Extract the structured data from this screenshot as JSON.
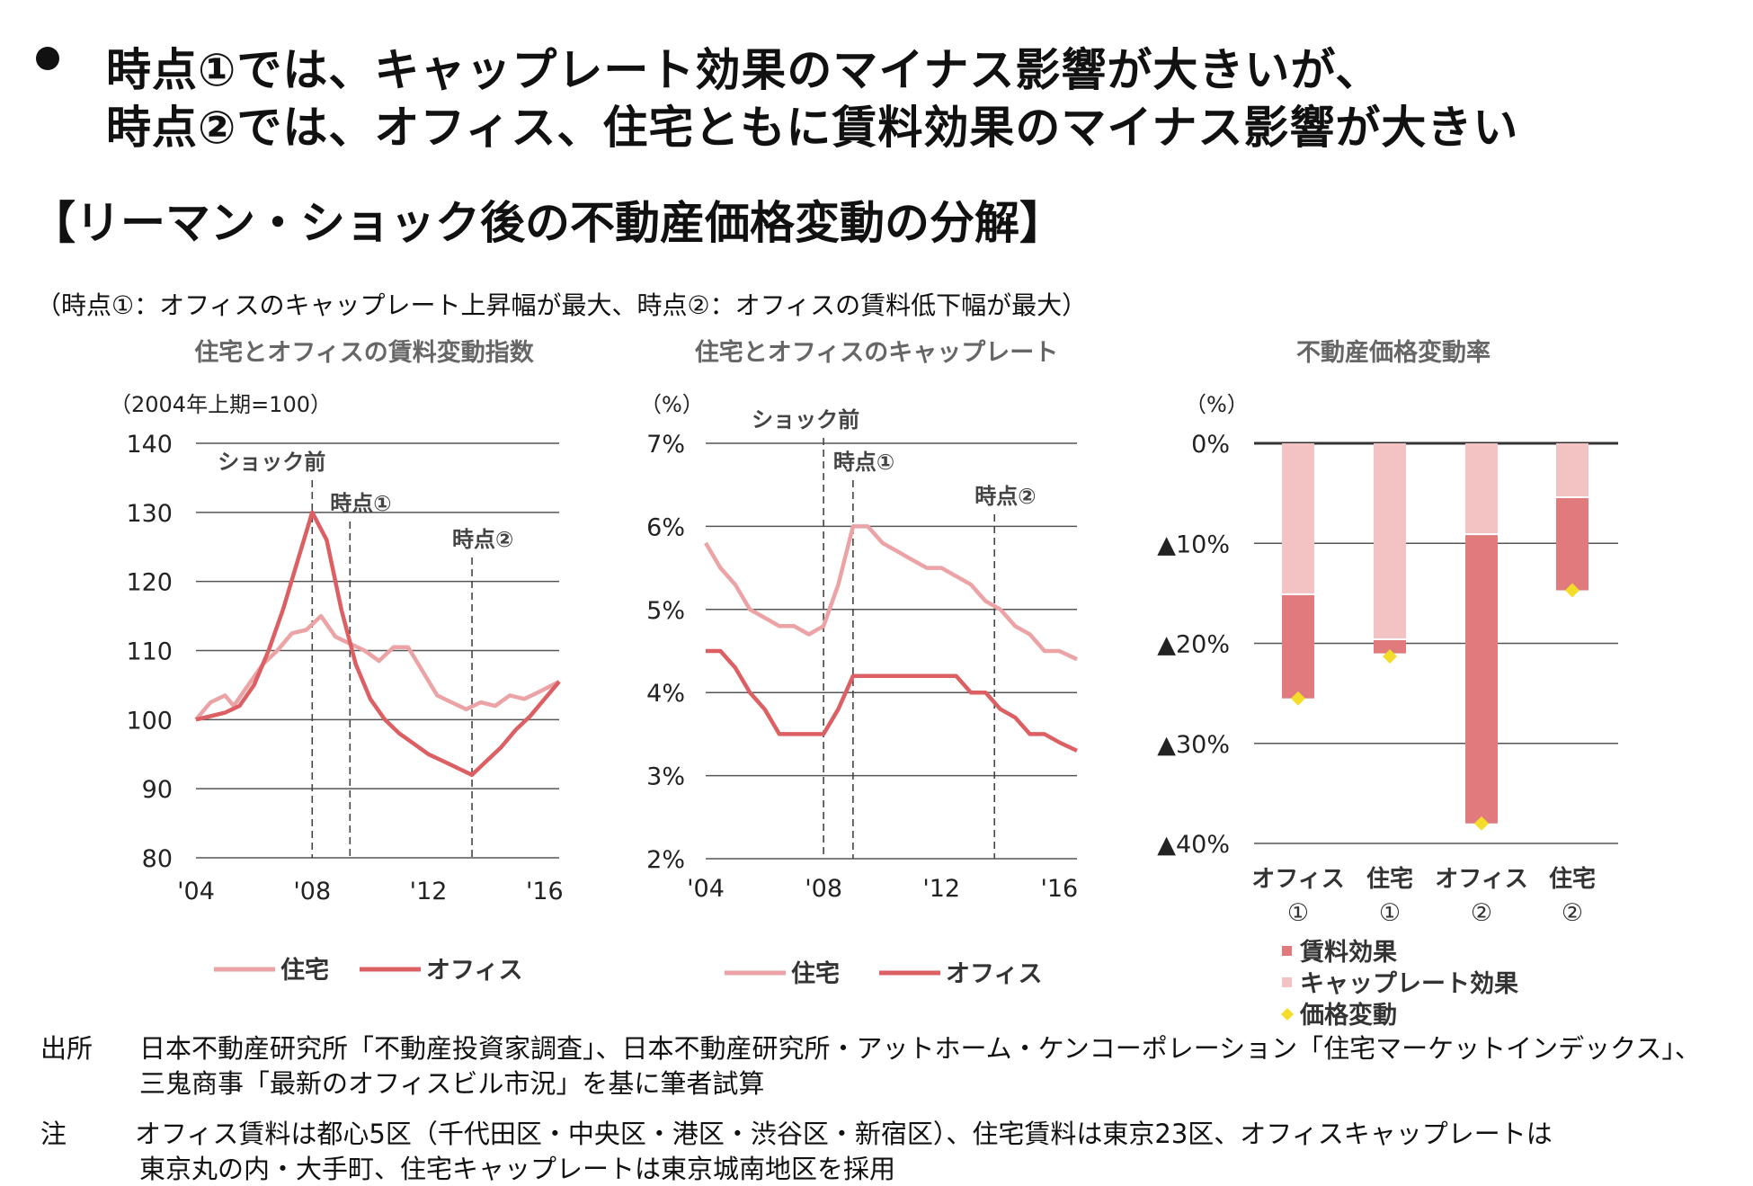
{
  "headline": {
    "line1": "時点①では、キャップレート効果のマイナス影響が大きいが、",
    "line2": "時点②では、オフィス、住宅ともに賃料効果のマイナス影響が大きい"
  },
  "section_title": "【リーマン・ショック後の不動産価格変動の分解】",
  "subtitle": "（時点①：オフィスのキャップレート上昇幅が最大、時点②：オフィスの賃料低下幅が最大）",
  "colors": {
    "housing": "#eba3a5",
    "office": "#dc5f63",
    "rent_effect": "#e07a7d",
    "cap_effect": "#f3c3c4",
    "price_change": "#f3dc2a",
    "grid": "#555555",
    "vline": "#444444"
  },
  "chart_data": [
    {
      "type": "line",
      "title": "住宅とオフィスの賃料変動指数",
      "unit_label": "（2004年上期=100）",
      "ylim": [
        80,
        140
      ],
      "yticks": [
        "140",
        "130",
        "120",
        "110",
        "100",
        "90",
        "80"
      ],
      "ytick_values": [
        140,
        130,
        120,
        110,
        100,
        90,
        80
      ],
      "xticks": [
        "'04",
        "'08",
        "'12",
        "'16"
      ],
      "xtick_values": [
        2004,
        2008,
        2012,
        2016
      ],
      "xlim": [
        2004,
        2016.5
      ],
      "markers": [
        {
          "label": "ショック前",
          "x": 2008.0
        },
        {
          "label": "時点①",
          "x": 2009.3
        },
        {
          "label": "時点②",
          "x": 2013.5
        }
      ],
      "series": [
        {
          "name": "住宅",
          "points": [
            [
              2004,
              100
            ],
            [
              2004.5,
              102.5
            ],
            [
              2005,
              103.5
            ],
            [
              2005.3,
              102
            ],
            [
              2005.8,
              105
            ],
            [
              2006.3,
              108
            ],
            [
              2006.8,
              110
            ],
            [
              2007.3,
              112.5
            ],
            [
              2007.8,
              113
            ],
            [
              2008.3,
              115
            ],
            [
              2008.8,
              112
            ],
            [
              2009.3,
              111
            ],
            [
              2009.8,
              110
            ],
            [
              2010.3,
              108.5
            ],
            [
              2010.8,
              110.5
            ],
            [
              2011.3,
              110.5
            ],
            [
              2011.8,
              107
            ],
            [
              2012.3,
              103.5
            ],
            [
              2012.8,
              102.5
            ],
            [
              2013.3,
              101.5
            ],
            [
              2013.8,
              102.5
            ],
            [
              2014.3,
              102
            ],
            [
              2014.8,
              103.5
            ],
            [
              2015.3,
              103
            ],
            [
              2015.8,
              104
            ],
            [
              2016.5,
              105.5
            ]
          ]
        },
        {
          "name": "オフィス",
          "points": [
            [
              2004,
              100
            ],
            [
              2004.5,
              100.5
            ],
            [
              2005,
              101
            ],
            [
              2005.5,
              102
            ],
            [
              2006,
              105
            ],
            [
              2006.5,
              110
            ],
            [
              2007,
              116
            ],
            [
              2007.5,
              123
            ],
            [
              2008,
              130
            ],
            [
              2008.5,
              126
            ],
            [
              2009,
              116
            ],
            [
              2009.5,
              108
            ],
            [
              2010,
              103
            ],
            [
              2010.5,
              100
            ],
            [
              2011,
              98
            ],
            [
              2011.5,
              96.5
            ],
            [
              2012,
              95
            ],
            [
              2012.5,
              94
            ],
            [
              2013,
              93
            ],
            [
              2013.5,
              92
            ],
            [
              2014,
              94
            ],
            [
              2014.5,
              96
            ],
            [
              2015,
              98.5
            ],
            [
              2015.5,
              100.5
            ],
            [
              2016,
              103
            ],
            [
              2016.5,
              105.5
            ]
          ]
        }
      ],
      "legend": [
        "住宅",
        "オフィス"
      ]
    },
    {
      "type": "line",
      "title": "住宅とオフィスのキャップレート",
      "unit_label": "（%）",
      "ylim": [
        2,
        7
      ],
      "yticks": [
        "7%",
        "6%",
        "5%",
        "4%",
        "3%",
        "2%"
      ],
      "ytick_values": [
        7,
        6,
        5,
        4,
        3,
        2
      ],
      "xticks": [
        "'04",
        "'08",
        "'12",
        "'16"
      ],
      "xtick_values": [
        2004,
        2008,
        2012,
        2016
      ],
      "xlim": [
        2004,
        2016.6
      ],
      "markers": [
        {
          "label": "ショック前",
          "x": 2008.0
        },
        {
          "label": "時点①",
          "x": 2009.0
        },
        {
          "label": "時点②",
          "x": 2013.8
        }
      ],
      "series": [
        {
          "name": "住宅",
          "points": [
            [
              2004,
              5.8
            ],
            [
              2004.5,
              5.5
            ],
            [
              2005,
              5.3
            ],
            [
              2005.5,
              5.0
            ],
            [
              2006,
              4.9
            ],
            [
              2006.5,
              4.8
            ],
            [
              2007,
              4.8
            ],
            [
              2007.5,
              4.7
            ],
            [
              2008,
              4.8
            ],
            [
              2008.5,
              5.3
            ],
            [
              2009,
              6.0
            ],
            [
              2009.5,
              6.0
            ],
            [
              2010,
              5.8
            ],
            [
              2010.5,
              5.7
            ],
            [
              2011,
              5.6
            ],
            [
              2011.5,
              5.5
            ],
            [
              2012,
              5.5
            ],
            [
              2012.5,
              5.4
            ],
            [
              2013,
              5.3
            ],
            [
              2013.5,
              5.1
            ],
            [
              2014,
              5.0
            ],
            [
              2014.5,
              4.8
            ],
            [
              2015,
              4.7
            ],
            [
              2015.5,
              4.5
            ],
            [
              2016,
              4.5
            ],
            [
              2016.6,
              4.4
            ]
          ]
        },
        {
          "name": "オフィス",
          "points": [
            [
              2004,
              4.5
            ],
            [
              2004.5,
              4.5
            ],
            [
              2005,
              4.3
            ],
            [
              2005.5,
              4.0
            ],
            [
              2006,
              3.8
            ],
            [
              2006.5,
              3.5
            ],
            [
              2007,
              3.5
            ],
            [
              2007.5,
              3.5
            ],
            [
              2008,
              3.5
            ],
            [
              2008.5,
              3.8
            ],
            [
              2009,
              4.2
            ],
            [
              2009.5,
              4.2
            ],
            [
              2010,
              4.2
            ],
            [
              2010.5,
              4.2
            ],
            [
              2011,
              4.2
            ],
            [
              2011.5,
              4.2
            ],
            [
              2012,
              4.2
            ],
            [
              2012.5,
              4.2
            ],
            [
              2013,
              4.0
            ],
            [
              2013.5,
              4.0
            ],
            [
              2014,
              3.8
            ],
            [
              2014.5,
              3.7
            ],
            [
              2015,
              3.5
            ],
            [
              2015.5,
              3.5
            ],
            [
              2016,
              3.4
            ],
            [
              2016.6,
              3.3
            ]
          ]
        }
      ],
      "legend": [
        "住宅",
        "オフィス"
      ]
    },
    {
      "type": "bar",
      "title": "不動産価格変動率",
      "unit_label": "（%）",
      "ylim": [
        -40,
        0
      ],
      "yticks": [
        "0%",
        "▲10%",
        "▲20%",
        "▲30%",
        "▲40%"
      ],
      "ytick_values": [
        0,
        -10,
        -20,
        -30,
        -40
      ],
      "categories": [
        [
          "オフィス",
          "①"
        ],
        [
          "住宅",
          "①"
        ],
        [
          "オフィス",
          "②"
        ],
        [
          "住宅",
          "②"
        ]
      ],
      "series": [
        {
          "name": "キャップレート効果",
          "values": [
            -15,
            -19.5,
            -9,
            -5.3
          ]
        },
        {
          "name": "賃料効果",
          "values": [
            -10.5,
            -1.5,
            -29,
            -9.4
          ]
        },
        {
          "name": "価格変動",
          "values": [
            -25.5,
            -21.3,
            -38,
            -14.7
          ]
        }
      ],
      "legend": [
        "賃料効果",
        "キャップレート効果",
        "価格変動"
      ]
    }
  ],
  "notes": {
    "source_label": "出所",
    "source_line1": "日本不動産研究所「不動産投資家調査」、日本不動産研究所・アットホーム・ケンコーポレーション「住宅マーケットインデックス」、",
    "source_line2": "三鬼商事「最新のオフィスビル市況」を基に筆者試算",
    "note_label": "注",
    "note_line1": "オフィス賃料は都心5区（千代田区・中央区・港区・渋谷区・新宿区）、住宅賃料は東京23区、オフィスキャップレートは",
    "note_line2": "東京丸の内・大手町、住宅キャップレートは東京城南地区を採用"
  }
}
